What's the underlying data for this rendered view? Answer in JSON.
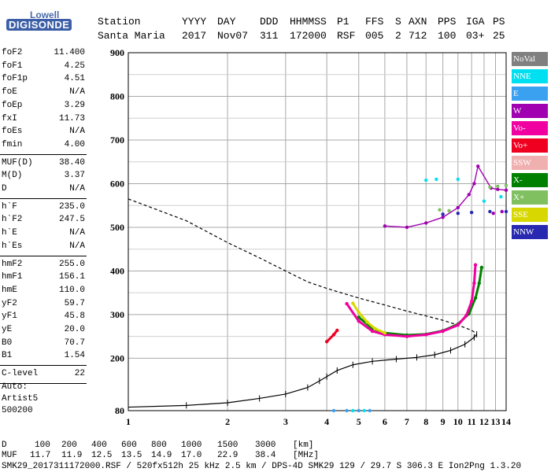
{
  "logo": {
    "line1": "Lowell",
    "line2": "DIGISONDE"
  },
  "header": {
    "labels": [
      "Station",
      "YYYY",
      "DAY",
      "DDD",
      "HHMMSS",
      "P1",
      "FFS",
      "S",
      "AXN",
      "PPS",
      "IGA",
      "PS"
    ],
    "values": [
      "Santa Maria",
      "2017",
      "Nov07",
      "311",
      "172000",
      "RSF",
      "005",
      "2",
      "712",
      "100",
      "03+",
      "25"
    ]
  },
  "params_group1": [
    {
      "label": "foF2",
      "value": "11.400"
    },
    {
      "label": "foF1",
      "value": "4.25"
    },
    {
      "label": "foF1p",
      "value": "4.51"
    },
    {
      "label": "foE",
      "value": "N/A"
    },
    {
      "label": "foEp",
      "value": "3.29"
    },
    {
      "label": "fxI",
      "value": "11.73"
    },
    {
      "label": "foEs",
      "value": "N/A"
    },
    {
      "label": "fmin",
      "value": "4.00"
    }
  ],
  "params_group2": [
    {
      "label": "MUF(D)",
      "value": "38.40"
    },
    {
      "label": "M(D)",
      "value": "3.37"
    },
    {
      "label": "D",
      "value": "N/A"
    }
  ],
  "params_group3": [
    {
      "label": "h`F",
      "value": "235.0"
    },
    {
      "label": "h`F2",
      "value": "247.5"
    },
    {
      "label": "h`E",
      "value": "N/A"
    },
    {
      "label": "h`Es",
      "value": "N/A"
    }
  ],
  "params_group4": [
    {
      "label": "hmF2",
      "value": "255.0"
    },
    {
      "label": "hmF1",
      "value": "156.1"
    },
    {
      "label": "hmE",
      "value": "110.0"
    },
    {
      "label": "yF2",
      "value": "59.7"
    },
    {
      "label": "yF1",
      "value": "45.8"
    },
    {
      "label": "yE",
      "value": "20.0"
    },
    {
      "label": "B0",
      "value": "70.7"
    },
    {
      "label": "B1",
      "value": "1.54"
    }
  ],
  "params_group5": [
    {
      "label": "C-level",
      "value": "22"
    }
  ],
  "autoscale": {
    "line1": "Auto:",
    "line2": "Artist5",
    "line3": "500200"
  },
  "legend": [
    {
      "label": "NoVal",
      "color": "#808080"
    },
    {
      "label": "NNE",
      "color": "#00e0f0"
    },
    {
      "label": "E",
      "color": "#3aa0f0"
    },
    {
      "label": "W",
      "color": "#a000b0"
    },
    {
      "label": "Vo-",
      "color": "#f000a0"
    },
    {
      "label": "Vo+",
      "color": "#f00020"
    },
    {
      "label": "SSW",
      "color": "#f0b0b0"
    },
    {
      "label": "X-",
      "color": "#008000"
    },
    {
      "label": "X+",
      "color": "#80c060"
    },
    {
      "label": "SSE",
      "color": "#d8d800"
    },
    {
      "label": "NNW",
      "color": "#2828b0"
    }
  ],
  "footer": {
    "d_label": "D",
    "d_values": [
      "100",
      "200",
      "400",
      "600",
      "800",
      "1000",
      "1500",
      "3000"
    ],
    "d_unit": "[km]",
    "muf_label": "MUF",
    "muf_values": [
      "11.7",
      "11.9",
      "12.5",
      "13.5",
      "14.9",
      "17.0",
      "22.9",
      "38.4"
    ],
    "muf_unit": "[MHz]",
    "file_line": "SMK29_2017311172000.RSF / 520fx512h 25 kHz 2.5 km / DPS-4D SMK29 129 / 29.7 S 306.3 E Ion2Png 1.3.20"
  },
  "chart_data": {
    "type": "scatter",
    "xlim": [
      1,
      14
    ],
    "ylim": [
      80,
      900
    ],
    "x_ticks": [
      1,
      2,
      3,
      4,
      5,
      6,
      7,
      8,
      9,
      10,
      11,
      12,
      13,
      14
    ],
    "y_ticks": [
      80,
      200,
      300,
      400,
      500,
      600,
      700,
      800,
      900
    ],
    "grid": true,
    "x_scale": "log",
    "series": [
      {
        "name": "X-",
        "color": "#008000",
        "points": [
          [
            5.0,
            294
          ],
          [
            5.5,
            268
          ],
          [
            6.0,
            258
          ],
          [
            7.0,
            253
          ],
          [
            8.0,
            255
          ],
          [
            9.0,
            263
          ],
          [
            10.0,
            278
          ],
          [
            10.8,
            302
          ],
          [
            11.3,
            338
          ],
          [
            11.6,
            372
          ],
          [
            11.8,
            408
          ]
        ]
      },
      {
        "name": "Vo-",
        "color": "#f000a0",
        "points": [
          [
            4.6,
            325
          ],
          [
            5.0,
            285
          ],
          [
            5.5,
            262
          ],
          [
            6.0,
            254
          ],
          [
            7.0,
            250
          ],
          [
            8.0,
            254
          ],
          [
            9.0,
            262
          ],
          [
            10.0,
            276
          ],
          [
            10.6,
            298
          ],
          [
            11.0,
            330
          ],
          [
            11.2,
            372
          ],
          [
            11.3,
            414
          ]
        ]
      },
      {
        "name": "Vo+",
        "color": "#f00020",
        "points": [
          [
            4.0,
            238
          ],
          [
            4.2,
            254
          ],
          [
            4.3,
            264
          ]
        ]
      },
      {
        "name": "SSE",
        "color": "#d8d800",
        "points": [
          [
            4.8,
            326
          ],
          [
            5.0,
            305
          ],
          [
            5.3,
            283
          ],
          [
            5.6,
            268
          ],
          [
            6.0,
            258
          ]
        ]
      },
      {
        "name": "W",
        "color": "#a000b0",
        "points": [
          [
            6.0,
            503
          ],
          [
            7.0,
            500
          ],
          [
            8.0,
            510
          ],
          [
            9.0,
            523
          ],
          [
            10.0,
            545
          ],
          [
            10.8,
            575
          ],
          [
            11.2,
            600
          ],
          [
            11.5,
            640
          ],
          [
            12.6,
            590
          ],
          [
            13.2,
            587
          ],
          [
            14.0,
            585
          ],
          [
            12.8,
            532
          ],
          [
            13.6,
            536
          ]
        ]
      },
      {
        "name": "NNE",
        "color": "#00e0f0",
        "points": [
          [
            8.0,
            608
          ],
          [
            8.6,
            610
          ],
          [
            10.0,
            610
          ],
          [
            12.0,
            560
          ],
          [
            13.5,
            570
          ],
          [
            4.8,
            80
          ],
          [
            5.2,
            80
          ]
        ]
      },
      {
        "name": "E",
        "color": "#3aa0f0",
        "points": [
          [
            4.2,
            80
          ],
          [
            4.6,
            80
          ],
          [
            5.0,
            80
          ],
          [
            5.4,
            80
          ]
        ]
      },
      {
        "name": "NNW",
        "color": "#2828b0",
        "points": [
          [
            9.0,
            530
          ],
          [
            10.0,
            532
          ],
          [
            11.0,
            534
          ],
          [
            12.5,
            536
          ],
          [
            14.0,
            536
          ]
        ]
      },
      {
        "name": "X+",
        "color": "#80c060",
        "points": [
          [
            12.5,
            592
          ],
          [
            13.2,
            594
          ],
          [
            14.0,
            596
          ],
          [
            8.8,
            540
          ],
          [
            9.4,
            538
          ]
        ]
      }
    ],
    "profile": [
      [
        1.0,
        88
      ],
      [
        1.5,
        92
      ],
      [
        2.0,
        98
      ],
      [
        2.5,
        108
      ],
      [
        3.0,
        118
      ],
      [
        3.5,
        133
      ],
      [
        3.8,
        148
      ],
      [
        4.0,
        158
      ],
      [
        4.3,
        172
      ],
      [
        4.8,
        185
      ],
      [
        5.5,
        193
      ],
      [
        6.5,
        198
      ],
      [
        7.5,
        202
      ],
      [
        8.5,
        208
      ],
      [
        9.5,
        218
      ],
      [
        10.5,
        232
      ],
      [
        11.2,
        248
      ],
      [
        11.4,
        255
      ]
    ],
    "extrapolation": [
      [
        1.0,
        565
      ],
      [
        1.5,
        515
      ],
      [
        2.0,
        465
      ],
      [
        2.5,
        430
      ],
      [
        3.0,
        400
      ],
      [
        3.5,
        375
      ],
      [
        4.0,
        360
      ],
      [
        5.0,
        338
      ],
      [
        6.0,
        322
      ],
      [
        7.0,
        308
      ],
      [
        8.0,
        297
      ],
      [
        9.0,
        287
      ],
      [
        10.0,
        276
      ],
      [
        11.0,
        264
      ],
      [
        11.4,
        256
      ]
    ]
  }
}
